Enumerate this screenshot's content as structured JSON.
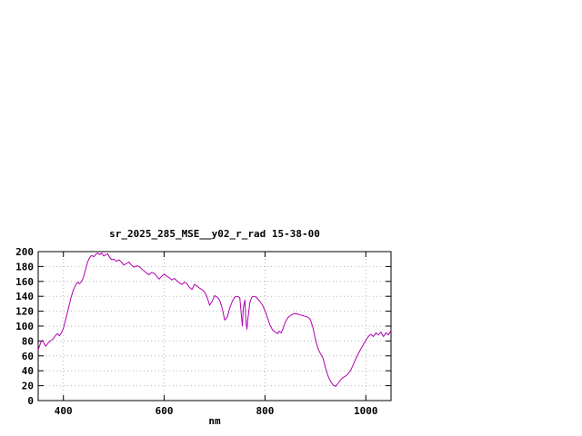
{
  "window": {
    "background": "#ffffff"
  },
  "chart_data": {
    "type": "line",
    "title": "sr_2025_285_MSE__y02_r_rad 15-38-00",
    "xlabel": "nm",
    "ylabel": "",
    "xlim": [
      350,
      1050
    ],
    "ylim": [
      0,
      200
    ],
    "x_ticks": [
      400,
      600,
      800,
      1000
    ],
    "y_ticks": [
      0,
      20,
      40,
      60,
      80,
      100,
      120,
      140,
      160,
      180,
      200
    ],
    "grid": true,
    "grid_color": "#b6b6b6",
    "line_color": "#b000b0",
    "axis_color": "#000000",
    "series": [
      {
        "name": "sr_2025_285_MSE__y02_r_rad",
        "points": [
          [
            350,
            68
          ],
          [
            353,
            74
          ],
          [
            356,
            79
          ],
          [
            359,
            81
          ],
          [
            362,
            76
          ],
          [
            365,
            73
          ],
          [
            368,
            76
          ],
          [
            372,
            79
          ],
          [
            376,
            81
          ],
          [
            380,
            83
          ],
          [
            384,
            87
          ],
          [
            388,
            90
          ],
          [
            392,
            87
          ],
          [
            396,
            91
          ],
          [
            400,
            97
          ],
          [
            405,
            110
          ],
          [
            410,
            124
          ],
          [
            415,
            138
          ],
          [
            420,
            149
          ],
          [
            425,
            156
          ],
          [
            428,
            159
          ],
          [
            432,
            157
          ],
          [
            436,
            160
          ],
          [
            440,
            166
          ],
          [
            444,
            176
          ],
          [
            448,
            186
          ],
          [
            452,
            192
          ],
          [
            456,
            195
          ],
          [
            460,
            193
          ],
          [
            464,
            196
          ],
          [
            468,
            198
          ],
          [
            472,
            196
          ],
          [
            476,
            198
          ],
          [
            480,
            194
          ],
          [
            484,
            196
          ],
          [
            488,
            197
          ],
          [
            492,
            192
          ],
          [
            496,
            189
          ],
          [
            500,
            190
          ],
          [
            505,
            187
          ],
          [
            510,
            189
          ],
          [
            515,
            186
          ],
          [
            520,
            182
          ],
          [
            525,
            184
          ],
          [
            530,
            186
          ],
          [
            535,
            182
          ],
          [
            540,
            179
          ],
          [
            545,
            181
          ],
          [
            550,
            180
          ],
          [
            555,
            177
          ],
          [
            560,
            174
          ],
          [
            565,
            171
          ],
          [
            570,
            169
          ],
          [
            575,
            172
          ],
          [
            580,
            171
          ],
          [
            585,
            167
          ],
          [
            590,
            163
          ],
          [
            595,
            167
          ],
          [
            600,
            170
          ],
          [
            605,
            167
          ],
          [
            610,
            165
          ],
          [
            615,
            162
          ],
          [
            620,
            164
          ],
          [
            625,
            161
          ],
          [
            630,
            158
          ],
          [
            635,
            156
          ],
          [
            640,
            159
          ],
          [
            645,
            157
          ],
          [
            650,
            152
          ],
          [
            655,
            149
          ],
          [
            660,
            156
          ],
          [
            665,
            154
          ],
          [
            670,
            151
          ],
          [
            675,
            149
          ],
          [
            680,
            146
          ],
          [
            685,
            139
          ],
          [
            690,
            128
          ],
          [
            695,
            133
          ],
          [
            700,
            141
          ],
          [
            705,
            139
          ],
          [
            710,
            135
          ],
          [
            715,
            124
          ],
          [
            720,
            108
          ],
          [
            725,
            112
          ],
          [
            730,
            124
          ],
          [
            735,
            133
          ],
          [
            740,
            139
          ],
          [
            745,
            140
          ],
          [
            750,
            138
          ],
          [
            753,
            115
          ],
          [
            755,
            100
          ],
          [
            757,
            125
          ],
          [
            760,
            135
          ],
          [
            762,
            108
          ],
          [
            764,
            96
          ],
          [
            766,
            110
          ],
          [
            770,
            132
          ],
          [
            774,
            139
          ],
          [
            778,
            140
          ],
          [
            782,
            139
          ],
          [
            786,
            136
          ],
          [
            790,
            133
          ],
          [
            795,
            128
          ],
          [
            800,
            121
          ],
          [
            805,
            111
          ],
          [
            810,
            101
          ],
          [
            815,
            95
          ],
          [
            820,
            92
          ],
          [
            825,
            90
          ],
          [
            828,
            93
          ],
          [
            832,
            91
          ],
          [
            836,
            97
          ],
          [
            840,
            105
          ],
          [
            845,
            111
          ],
          [
            850,
            114
          ],
          [
            855,
            116
          ],
          [
            860,
            117
          ],
          [
            865,
            116
          ],
          [
            870,
            115
          ],
          [
            875,
            114
          ],
          [
            880,
            113
          ],
          [
            885,
            112
          ],
          [
            890,
            109
          ],
          [
            895,
            98
          ],
          [
            900,
            82
          ],
          [
            905,
            70
          ],
          [
            910,
            63
          ],
          [
            915,
            57
          ],
          [
            920,
            44
          ],
          [
            925,
            33
          ],
          [
            930,
            26
          ],
          [
            935,
            21
          ],
          [
            940,
            19
          ],
          [
            945,
            23
          ],
          [
            950,
            28
          ],
          [
            955,
            31
          ],
          [
            960,
            33
          ],
          [
            965,
            36
          ],
          [
            970,
            41
          ],
          [
            975,
            48
          ],
          [
            980,
            56
          ],
          [
            985,
            63
          ],
          [
            990,
            69
          ],
          [
            995,
            75
          ],
          [
            1000,
            81
          ],
          [
            1005,
            86
          ],
          [
            1010,
            89
          ],
          [
            1015,
            86
          ],
          [
            1020,
            91
          ],
          [
            1025,
            88
          ],
          [
            1030,
            92
          ],
          [
            1035,
            86
          ],
          [
            1040,
            91
          ],
          [
            1045,
            88
          ],
          [
            1050,
            94
          ]
        ]
      }
    ]
  }
}
